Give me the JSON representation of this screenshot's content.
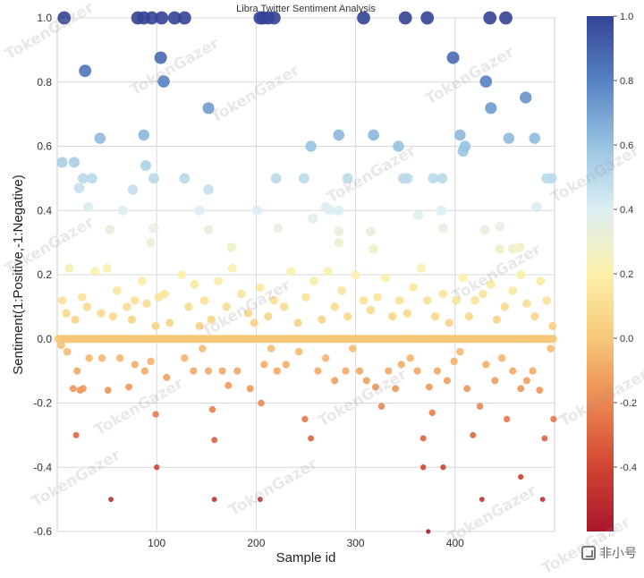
{
  "chart_data": {
    "type": "scatter",
    "title": "Libra Twitter Sentiment Analysis",
    "xlabel": "Sample id",
    "ylabel": "Sentiment(1:Positive,-1:Negative)",
    "xlim": [
      0,
      500
    ],
    "ylim": [
      -0.6,
      1.0
    ],
    "xticks": [
      100,
      200,
      300,
      400
    ],
    "xtick_labels": [
      "100",
      "200",
      "300",
      "400"
    ],
    "yticks": [
      -0.6,
      -0.4,
      -0.2,
      0.0,
      0.2,
      0.4,
      0.6,
      0.8,
      1.0
    ],
    "ytick_labels": [
      "-0.6",
      "-0.4",
      "-0.2",
      "0.0",
      "0.2",
      "0.4",
      "0.6",
      "0.8",
      "1.0"
    ],
    "grid": true,
    "colorbar": {
      "cmap": "RdYlBu",
      "range": [
        -0.6,
        1.0
      ],
      "ticks": [
        -0.4,
        -0.2,
        0.0,
        0.2,
        0.4,
        0.6,
        0.8,
        1.0
      ],
      "tick_labels": [
        "-0.4",
        "-0.2",
        "0.0",
        "0.2",
        "0.4",
        "0.6",
        "0.8",
        "1.0"
      ]
    },
    "point_size_encodes": "sentiment",
    "points": [
      [
        7,
        1.0
      ],
      [
        81,
        1.0
      ],
      [
        87,
        1.0
      ],
      [
        95,
        1.0
      ],
      [
        105,
        1.0
      ],
      [
        118,
        1.0
      ],
      [
        128,
        1.0
      ],
      [
        204,
        1.0
      ],
      [
        207,
        1.0
      ],
      [
        212,
        1.0
      ],
      [
        218,
        1.0
      ],
      [
        308,
        1.0
      ],
      [
        350,
        1.0
      ],
      [
        372,
        1.0
      ],
      [
        435,
        1.0
      ],
      [
        451,
        1.0
      ],
      [
        28,
        0.835
      ],
      [
        104,
        0.876
      ],
      [
        107,
        0.802
      ],
      [
        398,
        0.876
      ],
      [
        431,
        0.802
      ],
      [
        471,
        0.752
      ],
      [
        152,
        0.719
      ],
      [
        436,
        0.719
      ],
      [
        5,
        0.55
      ],
      [
        17,
        0.55
      ],
      [
        43,
        0.625
      ],
      [
        87,
        0.635
      ],
      [
        89,
        0.54
      ],
      [
        97,
        0.5
      ],
      [
        128,
        0.5
      ],
      [
        255,
        0.6
      ],
      [
        283,
        0.635
      ],
      [
        318,
        0.635
      ],
      [
        343,
        0.6
      ],
      [
        405,
        0.635
      ],
      [
        408,
        0.585
      ],
      [
        410,
        0.6
      ],
      [
        454,
        0.625
      ],
      [
        480,
        0.625
      ],
      [
        22,
        0.47
      ],
      [
        26,
        0.5
      ],
      [
        35,
        0.5
      ],
      [
        76,
        0.465
      ],
      [
        152,
        0.465
      ],
      [
        220,
        0.5
      ],
      [
        248,
        0.5
      ],
      [
        292,
        0.5
      ],
      [
        348,
        0.5
      ],
      [
        352,
        0.5
      ],
      [
        378,
        0.5
      ],
      [
        387,
        0.5
      ],
      [
        492,
        0.5
      ],
      [
        497,
        0.5
      ],
      [
        31,
        0.41
      ],
      [
        66,
        0.4
      ],
      [
        143,
        0.4
      ],
      [
        201,
        0.4
      ],
      [
        270,
        0.41
      ],
      [
        274,
        0.4
      ],
      [
        283,
        0.4
      ],
      [
        363,
        0.385
      ],
      [
        386,
        0.4
      ],
      [
        482,
        0.41
      ],
      [
        257,
        0.375
      ],
      [
        53,
        0.34
      ],
      [
        97,
        0.345
      ],
      [
        152,
        0.34
      ],
      [
        222,
        0.345
      ],
      [
        283,
        0.335
      ],
      [
        315,
        0.335
      ],
      [
        388,
        0.345
      ],
      [
        430,
        0.34
      ],
      [
        445,
        0.35
      ],
      [
        94,
        0.3
      ],
      [
        283,
        0.3
      ],
      [
        175,
        0.285
      ],
      [
        318,
        0.28
      ],
      [
        445,
        0.28
      ],
      [
        458,
        0.28
      ],
      [
        465,
        0.285
      ],
      [
        5,
        0.12
      ],
      [
        9,
        0.08
      ],
      [
        12,
        0.22
      ],
      [
        18,
        0.06
      ],
      [
        25,
        0.13
      ],
      [
        30,
        0.1
      ],
      [
        38,
        0.21
      ],
      [
        44,
        0.08
      ],
      [
        50,
        0.22
      ],
      [
        56,
        0.07
      ],
      [
        60,
        0.15
      ],
      [
        70,
        0.1
      ],
      [
        75,
        0.06
      ],
      [
        78,
        0.12
      ],
      [
        85,
        0.18
      ],
      [
        90,
        0.11
      ],
      [
        99,
        0.04
      ],
      [
        102,
        0.13
      ],
      [
        108,
        0.14
      ],
      [
        113,
        0.05
      ],
      [
        125,
        0.2
      ],
      [
        132,
        0.1
      ],
      [
        138,
        0.17
      ],
      [
        143,
        0.04
      ],
      [
        148,
        0.12
      ],
      [
        155,
        0.06
      ],
      [
        162,
        0.18
      ],
      [
        170,
        0.1
      ],
      [
        176,
        0.22
      ],
      [
        185,
        0.14
      ],
      [
        192,
        0.08
      ],
      [
        198,
        0.05
      ],
      [
        204,
        0.16
      ],
      [
        212,
        0.07
      ],
      [
        218,
        0.12
      ],
      [
        228,
        0.1
      ],
      [
        235,
        0.21
      ],
      [
        242,
        0.05
      ],
      [
        250,
        0.13
      ],
      [
        258,
        0.18
      ],
      [
        266,
        0.06
      ],
      [
        272,
        0.21
      ],
      [
        279,
        0.1
      ],
      [
        286,
        0.15
      ],
      [
        292,
        0.07
      ],
      [
        300,
        0.2
      ],
      [
        308,
        0.12
      ],
      [
        315,
        0.09
      ],
      [
        322,
        0.13
      ],
      [
        330,
        0.19
      ],
      [
        337,
        0.07
      ],
      [
        344,
        0.12
      ],
      [
        352,
        0.08
      ],
      [
        358,
        0.16
      ],
      [
        366,
        0.22
      ],
      [
        372,
        0.12
      ],
      [
        380,
        0.07
      ],
      [
        388,
        0.14
      ],
      [
        394,
        0.05
      ],
      [
        401,
        0.12
      ],
      [
        408,
        0.19
      ],
      [
        414,
        0.07
      ],
      [
        420,
        0.12
      ],
      [
        428,
        0.14
      ],
      [
        436,
        0.17
      ],
      [
        442,
        0.06
      ],
      [
        450,
        0.1
      ],
      [
        458,
        0.15
      ],
      [
        466,
        0.2
      ],
      [
        472,
        0.11
      ],
      [
        480,
        0.07
      ],
      [
        486,
        0.18
      ],
      [
        492,
        0.12
      ],
      [
        498,
        0.04
      ],
      [
        4,
        -0.02
      ],
      [
        10,
        -0.04
      ],
      [
        16,
        -0.155
      ],
      [
        20,
        -0.1
      ],
      [
        23,
        -0.16
      ],
      [
        26,
        -0.155
      ],
      [
        19,
        -0.3
      ],
      [
        32,
        -0.06
      ],
      [
        45,
        -0.06
      ],
      [
        51,
        -0.16
      ],
      [
        63,
        -0.06
      ],
      [
        72,
        -0.15
      ],
      [
        78,
        -0.08
      ],
      [
        88,
        -0.1
      ],
      [
        94,
        -0.07
      ],
      [
        99,
        -0.235
      ],
      [
        110,
        -0.12
      ],
      [
        128,
        -0.06
      ],
      [
        137,
        -0.1
      ],
      [
        146,
        -0.03
      ],
      [
        152,
        -0.1
      ],
      [
        156,
        -0.22
      ],
      [
        158,
        -0.315
      ],
      [
        166,
        -0.1
      ],
      [
        172,
        -0.145
      ],
      [
        181,
        -0.1
      ],
      [
        194,
        -0.155
      ],
      [
        205,
        -0.2
      ],
      [
        208,
        -0.08
      ],
      [
        215,
        -0.03
      ],
      [
        221,
        -0.1
      ],
      [
        230,
        -0.08
      ],
      [
        243,
        -0.04
      ],
      [
        249,
        -0.25
      ],
      [
        255,
        -0.31
      ],
      [
        262,
        -0.1
      ],
      [
        270,
        -0.06
      ],
      [
        279,
        -0.13
      ],
      [
        290,
        -0.1
      ],
      [
        297,
        -0.03
      ],
      [
        304,
        -0.1
      ],
      [
        311,
        -0.13
      ],
      [
        320,
        -0.15
      ],
      [
        326,
        -0.21
      ],
      [
        333,
        -0.1
      ],
      [
        340,
        -0.155
      ],
      [
        346,
        -0.08
      ],
      [
        355,
        -0.06
      ],
      [
        362,
        -0.1
      ],
      [
        368,
        -0.31
      ],
      [
        374,
        -0.15
      ],
      [
        382,
        -0.1
      ],
      [
        377,
        -0.23
      ],
      [
        392,
        -0.13
      ],
      [
        399,
        -0.07
      ],
      [
        405,
        -0.04
      ],
      [
        412,
        -0.155
      ],
      [
        418,
        -0.3
      ],
      [
        425,
        -0.21
      ],
      [
        431,
        -0.08
      ],
      [
        440,
        -0.13
      ],
      [
        447,
        -0.06
      ],
      [
        452,
        -0.25
      ],
      [
        458,
        -0.1
      ],
      [
        466,
        -0.155
      ],
      [
        472,
        -0.13
      ],
      [
        478,
        -0.1
      ],
      [
        485,
        -0.16
      ],
      [
        490,
        -0.31
      ],
      [
        496,
        -0.03
      ],
      [
        499,
        -0.25
      ],
      [
        54,
        -0.5
      ],
      [
        100,
        -0.4
      ],
      [
        158,
        -0.5
      ],
      [
        204,
        -0.5
      ],
      [
        368,
        -0.4
      ],
      [
        373,
        -0.6
      ],
      [
        388,
        -0.4
      ],
      [
        427,
        -0.5
      ],
      [
        466,
        -0.43
      ],
      [
        488,
        -0.5
      ]
    ]
  },
  "watermark": "TokenGazer",
  "badge": {
    "label": "非小号"
  }
}
